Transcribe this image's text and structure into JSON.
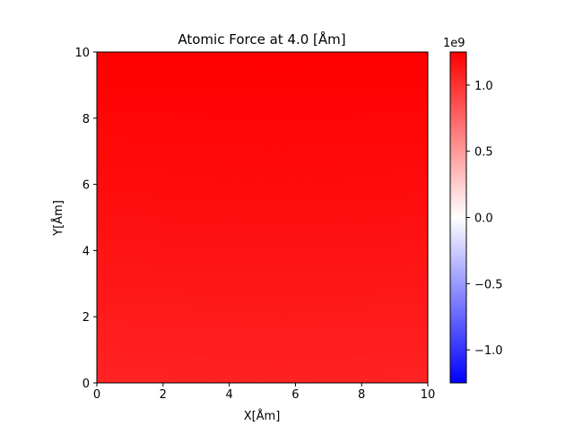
{
  "chart_data": {
    "type": "heatmap",
    "title": "Atomic Force at 4.0 [Åm]",
    "xlabel": "X[Åm]",
    "ylabel": "Y[Åm]",
    "xlim": [
      0,
      10
    ],
    "ylim": [
      0,
      10
    ],
    "x_ticks": [
      "0",
      "2",
      "4",
      "6",
      "8",
      "10"
    ],
    "y_ticks": [
      "0",
      "2",
      "4",
      "6",
      "8",
      "10"
    ],
    "colormap": "bwr",
    "colorbar": {
      "min": -1.25,
      "max": 1.25,
      "ticks": [
        "−1.0",
        "−0.5",
        "0.0",
        "0.5",
        "1.0"
      ],
      "tick_values": [
        -1.0,
        -0.5,
        0.0,
        0.5,
        1.0
      ],
      "offset_text": "1e9",
      "colors": {
        "low": "#0000ff",
        "mid": "#ffffff",
        "high": "#ff0000"
      }
    },
    "field": {
      "description_values": "near-uniform strong positive force, slightly higher at top-center",
      "value_at_bottom": 1.08,
      "value_at_top": 1.25
    },
    "grid": false
  }
}
